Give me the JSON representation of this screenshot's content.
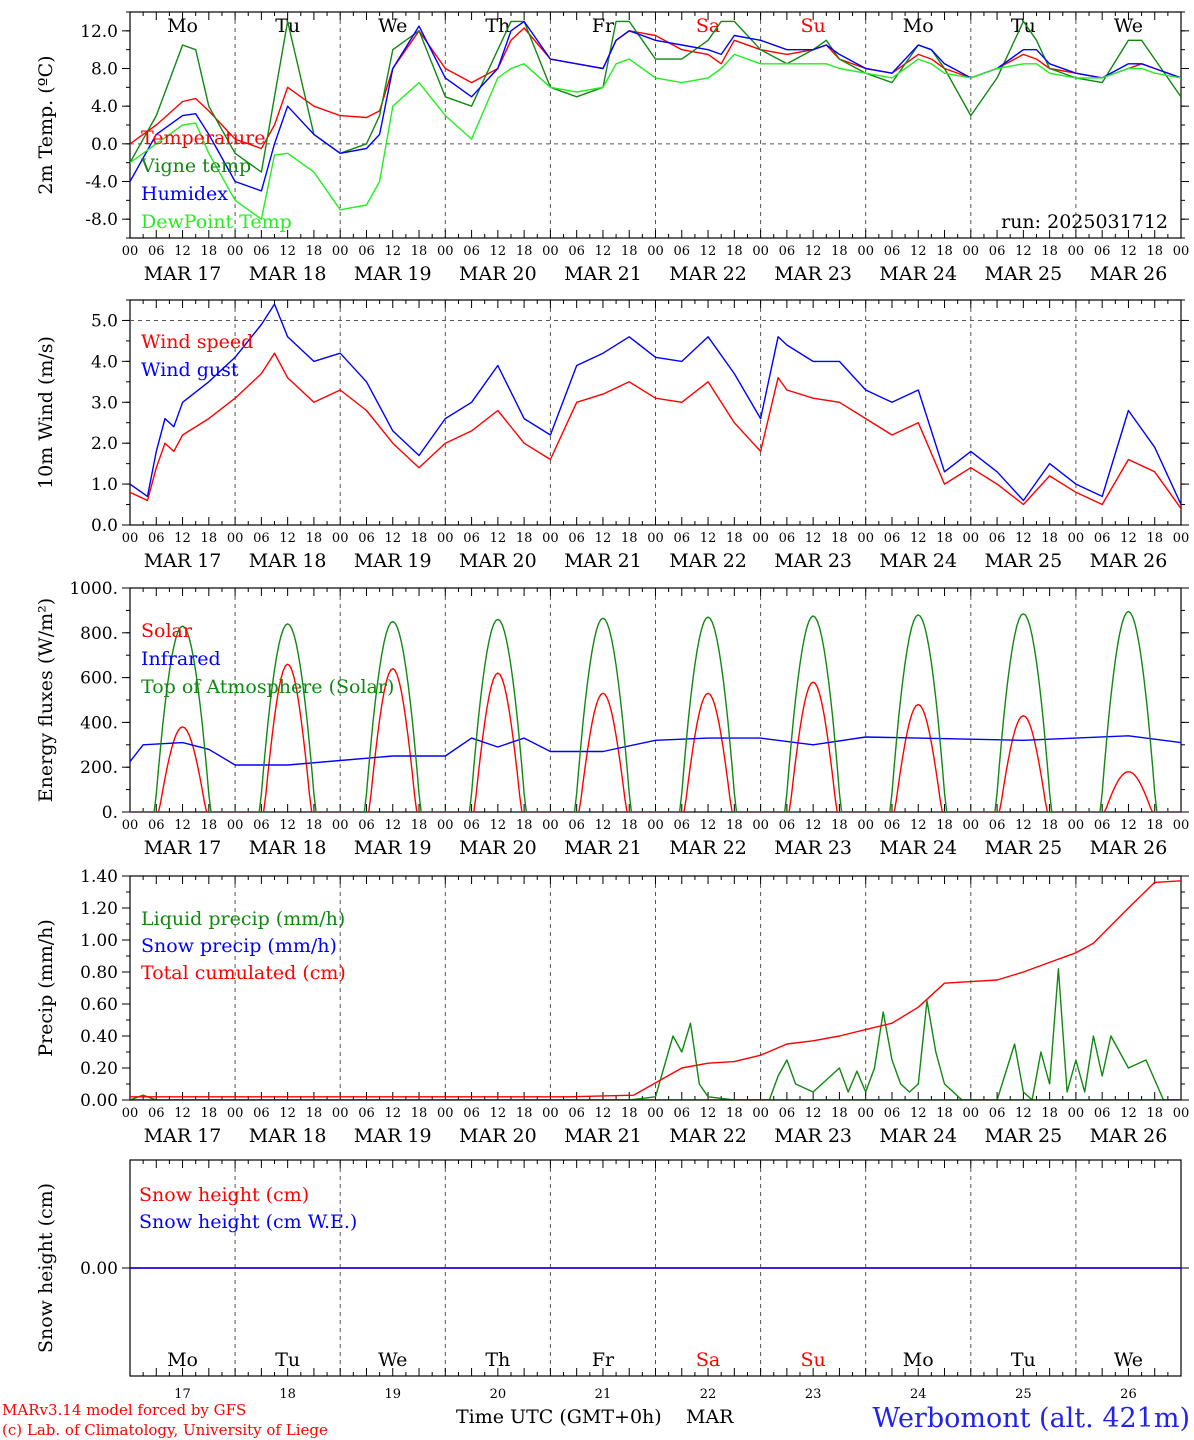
{
  "run_label": "run: 2025031712",
  "footer": {
    "model_line": "MARv3.14 model forced by GFS",
    "credit_line": "(c) Lab. of Climatology, University of Liege",
    "xaxis_title": "Time UTC (GMT+0h)",
    "month": "MAR",
    "station": "Werbomont (alt. 421m)"
  },
  "days": [
    {
      "dow": "Mo",
      "date": "MAR 17",
      "num": "17",
      "weekend": false
    },
    {
      "dow": "Tu",
      "date": "MAR 18",
      "num": "18",
      "weekend": false
    },
    {
      "dow": "We",
      "date": "MAR 19",
      "num": "19",
      "weekend": false
    },
    {
      "dow": "Th",
      "date": "MAR 20",
      "num": "20",
      "weekend": false
    },
    {
      "dow": "Fr",
      "date": "MAR 21",
      "num": "21",
      "weekend": false
    },
    {
      "dow": "Sa",
      "date": "MAR 22",
      "num": "22",
      "weekend": true
    },
    {
      "dow": "Su",
      "date": "MAR 23",
      "num": "23",
      "weekend": true
    },
    {
      "dow": "Mo",
      "date": "MAR 24",
      "num": "24",
      "weekend": false
    },
    {
      "dow": "Tu",
      "date": "MAR 25",
      "num": "25",
      "weekend": false
    },
    {
      "dow": "We",
      "date": "MAR 26",
      "num": "26",
      "weekend": false
    }
  ],
  "hour_ticks": [
    "00",
    "06",
    "12",
    "18"
  ],
  "colors": {
    "red": "#ff0000",
    "darkgreen": "#118811",
    "blue": "#0000ff",
    "lightgreen": "#22ee22",
    "grid": "#555555",
    "weekend": "#ff0000"
  },
  "chart_data": [
    {
      "type": "line",
      "ylabel": "2m Temp. (ºC)",
      "ylim": [
        -10,
        14
      ],
      "yticks": [
        "-8.0",
        "-4.0",
        "0.0",
        "4.0",
        "8.0",
        "12.0"
      ],
      "x_unit": "hours since MAR 17 00 UTC",
      "series": [
        {
          "name": "Temperature",
          "color": "#ff0000",
          "x": [
            0,
            6,
            12,
            15,
            18,
            24,
            30,
            33,
            36,
            42,
            48,
            54,
            57,
            60,
            66,
            72,
            78,
            84,
            87,
            90,
            96,
            102,
            108,
            111,
            114,
            120,
            126,
            132,
            135,
            138,
            144,
            150,
            156,
            159,
            162,
            168,
            174,
            180,
            183,
            186,
            192,
            198,
            204,
            207,
            210,
            216,
            222,
            228,
            231,
            234,
            240
          ],
          "y": [
            0,
            2,
            4.5,
            4.8,
            3.5,
            0.5,
            -0.5,
            2,
            6,
            4,
            3,
            2.8,
            3.5,
            8,
            12,
            8,
            6.5,
            8,
            11,
            12.3,
            9,
            8.5,
            8,
            11,
            12,
            11.5,
            10,
            9.5,
            8.5,
            11,
            10,
            9.5,
            10,
            10.5,
            9,
            8,
            7.5,
            9.5,
            9,
            8,
            7,
            8,
            9.5,
            9,
            8,
            7.5,
            7,
            8,
            8.5,
            8,
            7
          ]
        },
        {
          "name": "Vigne temp",
          "color": "#118811",
          "x": [
            0,
            6,
            12,
            15,
            18,
            24,
            30,
            33,
            36,
            42,
            48,
            54,
            57,
            60,
            66,
            72,
            78,
            84,
            87,
            90,
            96,
            102,
            108,
            111,
            114,
            120,
            126,
            132,
            135,
            138,
            144,
            150,
            156,
            159,
            162,
            168,
            174,
            180,
            183,
            186,
            192,
            198,
            204,
            207,
            210,
            216,
            222,
            228,
            231,
            234,
            240
          ],
          "y": [
            -2,
            3,
            10.5,
            10,
            4,
            -1,
            -3,
            5,
            13,
            1,
            -1,
            0,
            3,
            10,
            12,
            5,
            4,
            10,
            13,
            13,
            6,
            5,
            6,
            13,
            13,
            9,
            9,
            11,
            13,
            13,
            10,
            8.5,
            10,
            11,
            9,
            7.5,
            6.5,
            10.5,
            10,
            8,
            3,
            7,
            13,
            11,
            8,
            7,
            6.5,
            11,
            11,
            9,
            5
          ]
        },
        {
          "name": "Humidex",
          "color": "#0000ff",
          "x": [
            0,
            6,
            12,
            15,
            18,
            24,
            30,
            33,
            36,
            42,
            48,
            54,
            57,
            60,
            66,
            72,
            78,
            84,
            87,
            90,
            96,
            102,
            108,
            111,
            114,
            120,
            126,
            132,
            135,
            138,
            144,
            150,
            156,
            159,
            162,
            168,
            174,
            180,
            183,
            186,
            192,
            198,
            204,
            207,
            210,
            216,
            222,
            228,
            231,
            234,
            240
          ],
          "y": [
            -4,
            1,
            3,
            3.2,
            1,
            -4,
            -5,
            0,
            4,
            1,
            -1,
            -0.5,
            1,
            8,
            12.5,
            7,
            5,
            8,
            12,
            13,
            9,
            8.5,
            8,
            11,
            12,
            11,
            10.5,
            10,
            9.5,
            11.5,
            11,
            10,
            10,
            10.5,
            9.5,
            8,
            7.5,
            10.5,
            10,
            8.5,
            7,
            8,
            10,
            10,
            8.5,
            7.5,
            7,
            8.5,
            8.5,
            8,
            7
          ]
        },
        {
          "name": "DewPoint Temp",
          "color": "#22ee22",
          "x": [
            0,
            6,
            12,
            15,
            18,
            24,
            30,
            33,
            36,
            42,
            48,
            54,
            57,
            60,
            66,
            72,
            78,
            84,
            87,
            90,
            96,
            102,
            108,
            111,
            114,
            120,
            126,
            132,
            135,
            138,
            144,
            150,
            156,
            159,
            162,
            168,
            174,
            180,
            183,
            186,
            192,
            198,
            204,
            207,
            210,
            216,
            222,
            228,
            231,
            234,
            240
          ],
          "y": [
            -2,
            0,
            2,
            2.2,
            -1,
            -6,
            -8,
            -1.2,
            -1,
            -3,
            -7,
            -6.5,
            -4,
            4,
            6.5,
            3,
            0.5,
            7,
            8,
            8.5,
            6,
            5.5,
            6,
            8.5,
            9,
            7,
            6.5,
            7,
            8,
            9.5,
            8.5,
            8.5,
            8.5,
            8.5,
            8,
            7.5,
            7,
            9,
            8.5,
            7.5,
            7,
            8,
            8.5,
            8.5,
            7.5,
            7,
            7,
            8,
            8,
            7.5,
            7
          ]
        }
      ]
    },
    {
      "type": "line",
      "ylabel": "10m Wind (m/s)",
      "ylim": [
        0,
        5.5
      ],
      "yticks": [
        "0.0",
        "1.0",
        "2.0",
        "3.0",
        "4.0",
        "5.0"
      ],
      "x_unit": "hours since MAR 17 00 UTC",
      "series": [
        {
          "name": "Wind speed",
          "color": "#ff0000",
          "x": [
            0,
            4,
            6,
            8,
            10,
            12,
            18,
            24,
            30,
            33,
            36,
            42,
            48,
            54,
            60,
            66,
            72,
            78,
            84,
            90,
            96,
            102,
            108,
            114,
            120,
            126,
            132,
            138,
            144,
            148,
            150,
            156,
            162,
            168,
            174,
            180,
            186,
            192,
            198,
            204,
            210,
            216,
            222,
            228,
            234,
            240
          ],
          "y": [
            0.8,
            0.6,
            1.4,
            2,
            1.8,
            2.2,
            2.6,
            3.1,
            3.7,
            4.2,
            3.6,
            3.0,
            3.3,
            2.8,
            2.0,
            1.4,
            2.0,
            2.3,
            2.8,
            2.0,
            1.6,
            3.0,
            3.2,
            3.5,
            3.1,
            3.0,
            3.5,
            2.5,
            1.8,
            3.6,
            3.3,
            3.1,
            3.0,
            2.6,
            2.2,
            2.5,
            1.0,
            1.4,
            1.0,
            0.5,
            1.2,
            0.8,
            0.5,
            1.6,
            1.3,
            0.4
          ]
        },
        {
          "name": "Wind gust",
          "color": "#0000ff",
          "x": [
            0,
            4,
            6,
            8,
            10,
            12,
            18,
            24,
            30,
            33,
            36,
            42,
            48,
            54,
            60,
            66,
            72,
            78,
            84,
            90,
            96,
            102,
            108,
            114,
            120,
            126,
            132,
            138,
            144,
            148,
            150,
            156,
            162,
            168,
            174,
            180,
            186,
            192,
            198,
            204,
            210,
            216,
            222,
            228,
            234,
            240
          ],
          "y": [
            1.0,
            0.7,
            1.8,
            2.6,
            2.4,
            3.0,
            3.5,
            4.1,
            4.9,
            5.4,
            4.6,
            4.0,
            4.2,
            3.5,
            2.3,
            1.7,
            2.6,
            3.0,
            3.9,
            2.6,
            2.2,
            3.9,
            4.2,
            4.6,
            4.1,
            4.0,
            4.6,
            3.7,
            2.6,
            4.6,
            4.4,
            4.0,
            4.0,
            3.3,
            3.0,
            3.3,
            1.3,
            1.8,
            1.3,
            0.6,
            1.5,
            1.0,
            0.7,
            2.8,
            1.9,
            0.5
          ]
        }
      ]
    },
    {
      "type": "line",
      "ylabel": "Energy fluxes (W/m²)",
      "ylim": [
        0,
        1000
      ],
      "yticks": [
        "0.",
        "200.",
        "400.",
        "600.",
        "800.",
        "1000."
      ],
      "x_unit": "hours since MAR 17 00 UTC",
      "series": [
        {
          "name": "Solar",
          "color": "#ff0000",
          "day_peaks": [
            380,
            660,
            640,
            620,
            530,
            530,
            580,
            480,
            430,
            180
          ]
        },
        {
          "name": "Infrared",
          "color": "#0000ff",
          "x": [
            0,
            3,
            12,
            18,
            24,
            36,
            48,
            60,
            72,
            78,
            84,
            90,
            96,
            108,
            120,
            132,
            144,
            156,
            168,
            180,
            192,
            204,
            216,
            228,
            240
          ],
          "y": [
            225,
            300,
            310,
            280,
            210,
            210,
            230,
            250,
            250,
            330,
            290,
            330,
            270,
            270,
            320,
            330,
            330,
            300,
            335,
            330,
            325,
            320,
            330,
            340,
            310
          ]
        },
        {
          "name": "Top of Atmosphere (Solar)",
          "color": "#118811",
          "day_peaks": [
            830,
            840,
            850,
            860,
            865,
            870,
            875,
            880,
            885,
            895
          ]
        }
      ]
    },
    {
      "type": "line",
      "ylabel": "Precip (mm/h)",
      "ylim": [
        0,
        1.4
      ],
      "yticks": [
        "0.00",
        "0.20",
        "0.40",
        "0.60",
        "0.80",
        "1.00",
        "1.20",
        "1.40"
      ],
      "x_unit": "hours since MAR 17 00 UTC",
      "series": [
        {
          "name": "Liquid precip (mm/h)",
          "color": "#118811",
          "x": [
            0,
            3,
            6,
            100,
            114,
            120,
            124,
            126,
            128,
            130,
            132,
            138,
            144,
            146,
            148,
            150,
            152,
            156,
            160,
            162,
            164,
            166,
            168,
            170,
            172,
            174,
            176,
            178,
            180,
            182,
            184,
            186,
            190,
            192,
            198,
            202,
            204,
            206,
            208,
            210,
            212,
            214,
            216,
            218,
            220,
            222,
            224,
            228,
            232,
            236,
            240
          ],
          "y": [
            0,
            0.03,
            0,
            0,
            0,
            0.02,
            0.4,
            0.3,
            0.48,
            0.1,
            0.02,
            0,
            0,
            0,
            0.15,
            0.25,
            0.1,
            0.05,
            0.15,
            0.2,
            0.05,
            0.18,
            0.05,
            0.2,
            0.55,
            0.25,
            0.1,
            0.05,
            0.1,
            0.62,
            0.3,
            0.1,
            0,
            0,
            0,
            0.35,
            0.05,
            0,
            0.3,
            0.1,
            0.82,
            0.05,
            0.25,
            0.05,
            0.4,
            0.15,
            0.4,
            0.2,
            0.25,
            0,
            0
          ]
        },
        {
          "name": "Snow precip (mm/h)",
          "color": "#0000ff",
          "x": [
            0,
            240
          ],
          "y": [
            0,
            0
          ]
        },
        {
          "name": "Total cumulated (cm)",
          "color": "#ff0000",
          "x": [
            0,
            100,
            115,
            126,
            132,
            138,
            144,
            150,
            156,
            162,
            168,
            174,
            180,
            186,
            192,
            198,
            204,
            210,
            216,
            220,
            228,
            234,
            240
          ],
          "y": [
            0.02,
            0.02,
            0.03,
            0.2,
            0.23,
            0.24,
            0.28,
            0.35,
            0.37,
            0.4,
            0.44,
            0.48,
            0.58,
            0.73,
            0.74,
            0.75,
            0.8,
            0.86,
            0.92,
            0.98,
            1.2,
            1.36,
            1.37
          ]
        }
      ]
    },
    {
      "type": "line",
      "ylabel": "Snow height (cm)",
      "ylim": [
        -1,
        1
      ],
      "yticks": [
        "0.00"
      ],
      "x_unit": "hours since MAR 17 00 UTC",
      "series": [
        {
          "name": "Snow height (cm)",
          "color": "#ff0000",
          "x": [
            0,
            240
          ],
          "y": [
            0,
            0
          ]
        },
        {
          "name": "Snow height (cm W.E.)",
          "color": "#0000ff",
          "x": [
            0,
            240
          ],
          "y": [
            0,
            0
          ]
        }
      ]
    }
  ]
}
